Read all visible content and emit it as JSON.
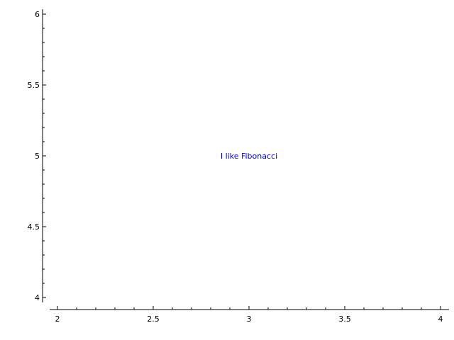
{
  "chart_data": {
    "type": "scatter",
    "title": "",
    "xlabel": "",
    "ylabel": "",
    "xlim": [
      2,
      4
    ],
    "ylim": [
      4,
      6
    ],
    "x_ticks": [
      {
        "value": 2,
        "label": "2"
      },
      {
        "value": 2.5,
        "label": "2.5"
      },
      {
        "value": 3,
        "label": "3"
      },
      {
        "value": 3.5,
        "label": "3.5"
      },
      {
        "value": 4,
        "label": "4"
      }
    ],
    "y_ticks": [
      {
        "value": 4,
        "label": "4"
      },
      {
        "value": 4.5,
        "label": "4.5"
      },
      {
        "value": 5,
        "label": "5"
      },
      {
        "value": 5.5,
        "label": "5.5"
      },
      {
        "value": 6,
        "label": "6"
      }
    ],
    "minor_ticks_per_major": 5,
    "grid": false,
    "legend": "none",
    "series": [],
    "annotations": [
      {
        "x": 3,
        "y": 5,
        "text": "I like Fibonacci",
        "color": "#0000ff"
      }
    ]
  }
}
